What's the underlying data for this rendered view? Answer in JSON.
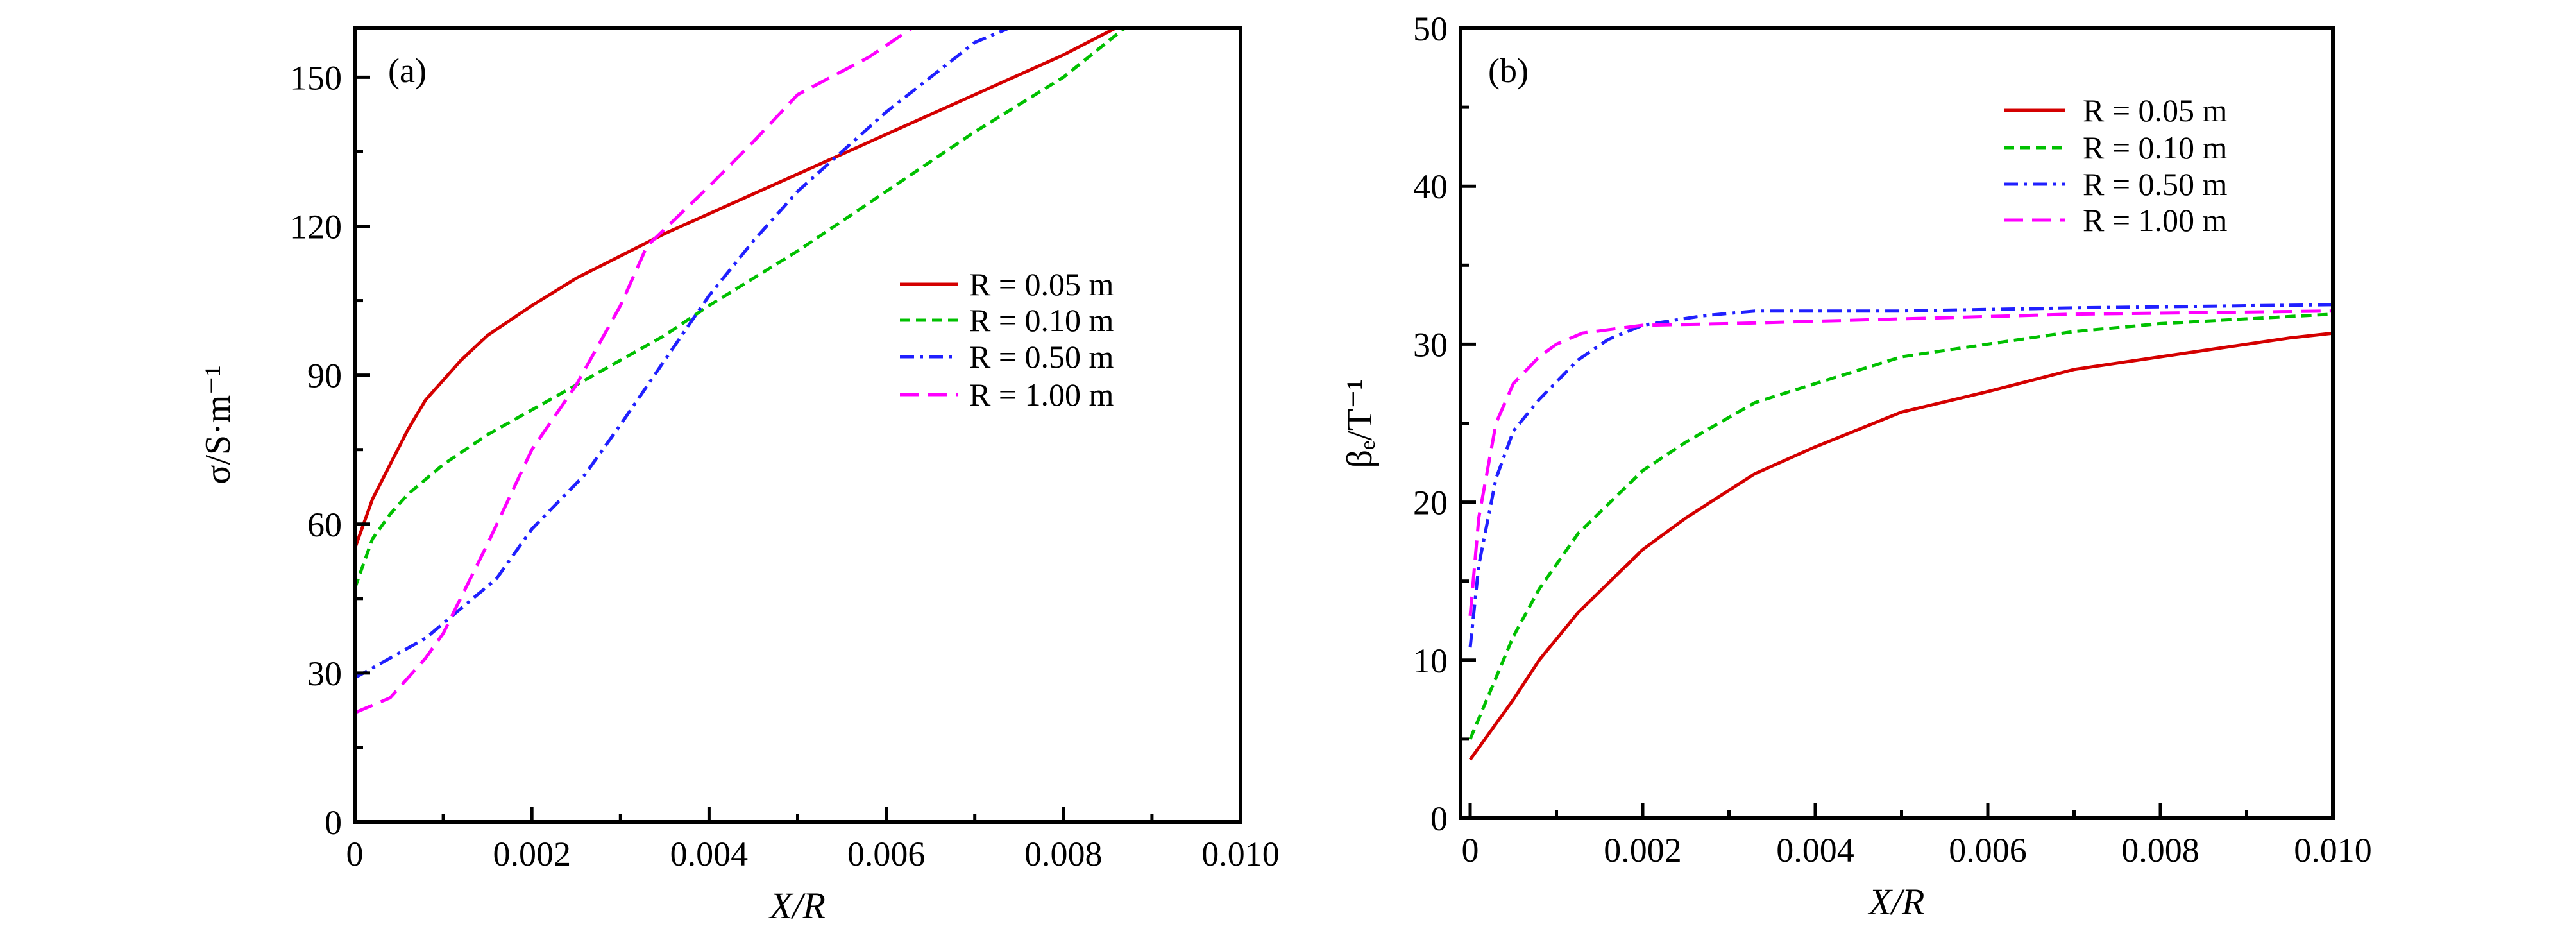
{
  "chart_data": [
    {
      "type": "line",
      "panel_label": "(a)",
      "xlabel": "X/R",
      "ylabel": "σ/S·m⁻¹",
      "xlim": [
        0,
        0.01
      ],
      "ylim": [
        0,
        160
      ],
      "xticks": [
        "0",
        "0.002",
        "0.004",
        "0.006",
        "0.008",
        "0.010"
      ],
      "xtick_values": [
        0,
        0.002,
        0.004,
        0.006,
        0.008,
        0.01
      ],
      "yticks": [
        "0",
        "30",
        "60",
        "90",
        "120",
        "150"
      ],
      "ytick_values": [
        0,
        30,
        60,
        90,
        120,
        150
      ],
      "grid": false,
      "legend_placement": "center-right",
      "series": [
        {
          "name": "R = 0.05 m",
          "color": "#d40000",
          "dash": "solid",
          "x": [
            0,
            0.0002,
            0.0004,
            0.0006,
            0.0008,
            0.001,
            0.0012,
            0.0015,
            0.002,
            0.0025,
            0.003,
            0.0035,
            0.004,
            0.005,
            0.006,
            0.007,
            0.008,
            0.0086
          ],
          "y": [
            55,
            65,
            72,
            79,
            85,
            89,
            93,
            98,
            104,
            109.5,
            114,
            118.5,
            122.5,
            130.5,
            138.5,
            146.5,
            154.5,
            160
          ]
        },
        {
          "name": "R = 0.10 m",
          "color": "#00c000",
          "dash": "short-dash",
          "x": [
            0,
            0.0002,
            0.0004,
            0.0006,
            0.0008,
            0.001,
            0.0015,
            0.002,
            0.0025,
            0.003,
            0.0035,
            0.004,
            0.005,
            0.006,
            0.007,
            0.008,
            0.0087
          ],
          "y": [
            47,
            57,
            62,
            66,
            69,
            72,
            78,
            83,
            88,
            93,
            98,
            104,
            115,
            127,
            139,
            150,
            160
          ]
        },
        {
          "name": "R = 0.50 m",
          "color": "#2020ff",
          "dash": "dash-dot",
          "x": [
            0,
            0.0004,
            0.0008,
            0.001,
            0.0016,
            0.002,
            0.0026,
            0.003,
            0.0035,
            0.004,
            0.0045,
            0.005,
            0.006,
            0.007,
            0.0074
          ],
          "y": [
            29,
            33,
            37,
            40,
            49,
            59,
            70,
            80,
            93,
            106,
            117,
            127,
            143,
            157,
            160
          ]
        },
        {
          "name": "R = 1.00 m",
          "color": "#ff00ff",
          "dash": "long-dash",
          "x": [
            0,
            0.0004,
            0.0008,
            0.001,
            0.0015,
            0.002,
            0.0025,
            0.003,
            0.0033,
            0.004,
            0.0045,
            0.005,
            0.0058,
            0.0063
          ],
          "y": [
            22,
            25,
            33,
            38,
            56,
            75,
            88,
            104,
            116,
            128,
            137,
            146.5,
            154,
            160
          ]
        }
      ]
    },
    {
      "type": "line",
      "panel_label": "(b)",
      "xlabel": "X/R",
      "ylabel": "βₑ/T⁻¹",
      "xlim": [
        0,
        0.01
      ],
      "ylim": [
        0,
        50
      ],
      "xticks": [
        "0",
        "0.002",
        "0.004",
        "0.006",
        "0.008",
        "0.010"
      ],
      "xtick_values": [
        0,
        0.002,
        0.004,
        0.006,
        0.008,
        0.01
      ],
      "yticks": [
        "0",
        "10",
        "20",
        "30",
        "40",
        "50"
      ],
      "ytick_values": [
        0,
        10,
        20,
        30,
        40,
        50
      ],
      "grid": false,
      "legend_placement": "top-right",
      "series": [
        {
          "name": "R = 0.05 m",
          "color": "#d40000",
          "dash": "solid",
          "x": [
            0,
            0.0005,
            0.0008,
            0.00125,
            0.002,
            0.0025,
            0.0033,
            0.004,
            0.005,
            0.006,
            0.007,
            0.008,
            0.0095,
            0.01
          ],
          "y": [
            3.7,
            7.5,
            10,
            13,
            17,
            19,
            21.8,
            23.5,
            25.7,
            27,
            28.4,
            29.2,
            30.4,
            30.7
          ]
        },
        {
          "name": "R = 0.10 m",
          "color": "#00c000",
          "dash": "short-dash",
          "x": [
            0,
            0.0005,
            0.0008,
            0.00125,
            0.002,
            0.0025,
            0.0033,
            0.004,
            0.005,
            0.006,
            0.007,
            0.008,
            0.01
          ],
          "y": [
            5,
            11.5,
            14.5,
            18,
            22,
            23.8,
            26.3,
            27.5,
            29.2,
            30,
            30.8,
            31.3,
            31.9
          ]
        },
        {
          "name": "R = 0.50 m",
          "color": "#2020ff",
          "dash": "dash-dot",
          "x": [
            0,
            0.0001,
            0.0003,
            0.0005,
            0.0008,
            0.00125,
            0.0016,
            0.002,
            0.0027,
            0.0033,
            0.005,
            0.007,
            0.01
          ],
          "y": [
            10.8,
            16,
            21.5,
            24.5,
            26.5,
            29,
            30.3,
            31.2,
            31.8,
            32.1,
            32.1,
            32.3,
            32.5
          ]
        },
        {
          "name": "R = 1.00 m",
          "color": "#ff00ff",
          "dash": "long-dash",
          "x": [
            0,
            0.0001,
            0.0003,
            0.0005,
            0.0008,
            0.001,
            0.0013,
            0.002,
            0.003,
            0.005,
            0.007,
            0.01
          ],
          "y": [
            12.8,
            19,
            25,
            27.5,
            29.2,
            30,
            30.7,
            31.2,
            31.3,
            31.6,
            31.9,
            32.1
          ]
        }
      ]
    }
  ]
}
